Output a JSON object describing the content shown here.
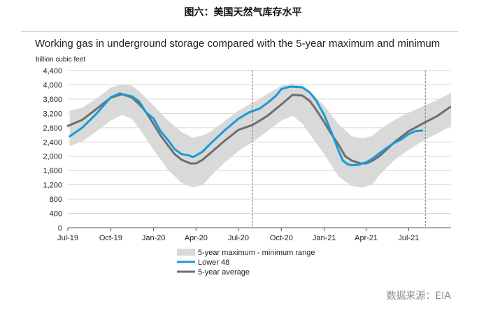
{
  "figure_title": "图六：美国天然气库存水平",
  "source_note": "数据来源：EIA",
  "chart_data": {
    "type": "line",
    "title": "Working gas in underground  storage compared with the 5-year maximum and minimum",
    "ylabel": "billion cubic feet",
    "xlabel": "",
    "ylim": [
      0,
      4400
    ],
    "y_ticks": [
      0,
      400,
      800,
      1200,
      1600,
      2000,
      2400,
      2800,
      3200,
      3600,
      4000,
      4400
    ],
    "y_tick_labels": [
      "0",
      "400",
      "800",
      "1,200",
      "1,600",
      "2,000",
      "2,400",
      "2,800",
      "3,200",
      "3,600",
      "4,000",
      "4,400"
    ],
    "x_range": [
      "2019-07-01",
      "2021-09-30"
    ],
    "x_ticks": [
      "2019-07-01",
      "2019-10-01",
      "2020-01-01",
      "2020-04-01",
      "2020-07-01",
      "2020-10-01",
      "2021-01-01",
      "2021-04-01",
      "2021-07-01"
    ],
    "x_tick_labels": [
      "Jul-19",
      "Oct-19",
      "Jan-20",
      "Apr-20",
      "Jul-20",
      "Oct-20",
      "Jan-21",
      "Apr-21",
      "Jul-21"
    ],
    "vertical_dashed_lines": [
      "2020-07-31",
      "2021-08-06"
    ],
    "legend_position": "bottom-center",
    "colors": {
      "range": "#d9d9d9",
      "lower48": "#1a9ad6",
      "average": "#6e6e6e"
    },
    "range_band": {
      "name": "5-year maximum - minimum range",
      "x": [
        "2019-07-05",
        "2019-08-01",
        "2019-09-01",
        "2019-10-01",
        "2019-10-25",
        "2019-11-15",
        "2019-12-01",
        "2020-01-01",
        "2020-02-01",
        "2020-03-01",
        "2020-03-25",
        "2020-04-15",
        "2020-05-01",
        "2020-06-01",
        "2020-07-01",
        "2020-08-01",
        "2020-09-01",
        "2020-10-01",
        "2020-10-25",
        "2020-11-15",
        "2020-12-01",
        "2021-01-01",
        "2021-02-01",
        "2021-03-01",
        "2021-03-25",
        "2021-04-15",
        "2021-05-01",
        "2021-06-01",
        "2021-07-01",
        "2021-08-01",
        "2021-09-01",
        "2021-09-30"
      ],
      "max": [
        3280,
        3360,
        3620,
        3920,
        4020,
        3980,
        3820,
        3420,
        3000,
        2680,
        2520,
        2580,
        2680,
        2980,
        3280,
        3500,
        3740,
        3980,
        4040,
        3980,
        3820,
        3420,
        2900,
        2560,
        2500,
        2580,
        2760,
        3020,
        3220,
        3400,
        3580,
        3770
      ],
      "min": [
        2280,
        2420,
        2700,
        3000,
        3160,
        3050,
        2780,
        2180,
        1620,
        1260,
        1130,
        1200,
        1420,
        1820,
        2150,
        2400,
        2700,
        3000,
        3130,
        2920,
        2620,
        2060,
        1430,
        1170,
        1120,
        1230,
        1500,
        1900,
        2180,
        2430,
        2640,
        2850
      ]
    },
    "series": [
      {
        "name": "Lower 48",
        "x": [
          "2019-07-05",
          "2019-08-01",
          "2019-09-01",
          "2019-10-01",
          "2019-10-20",
          "2019-11-01",
          "2019-11-15",
          "2019-12-01",
          "2019-12-15",
          "2020-01-01",
          "2020-01-15",
          "2020-02-01",
          "2020-02-15",
          "2020-03-01",
          "2020-03-15",
          "2020-03-25",
          "2020-04-01",
          "2020-04-15",
          "2020-05-01",
          "2020-06-01",
          "2020-07-01",
          "2020-07-24",
          "2020-08-15",
          "2020-09-01",
          "2020-09-20",
          "2020-10-01",
          "2020-10-20",
          "2020-11-01",
          "2020-11-15",
          "2020-12-01",
          "2020-12-15",
          "2021-01-01",
          "2021-01-15",
          "2021-02-01",
          "2021-02-10",
          "2021-02-20",
          "2021-03-01",
          "2021-03-15",
          "2021-04-01",
          "2021-04-15",
          "2021-05-01",
          "2021-05-20",
          "2021-06-01",
          "2021-06-15",
          "2021-07-01",
          "2021-07-15",
          "2021-07-30"
        ],
        "values": [
          2560,
          2800,
          3200,
          3650,
          3760,
          3720,
          3680,
          3540,
          3240,
          3050,
          2720,
          2450,
          2200,
          2060,
          2030,
          1980,
          2020,
          2130,
          2340,
          2720,
          3050,
          3230,
          3330,
          3490,
          3700,
          3880,
          3950,
          3940,
          3930,
          3790,
          3560,
          3150,
          2720,
          2150,
          1880,
          1780,
          1750,
          1760,
          1830,
          1940,
          2100,
          2280,
          2380,
          2470,
          2620,
          2700,
          2720
        ]
      },
      {
        "name": "5-year average",
        "x": [
          "2019-07-01",
          "2019-08-01",
          "2019-09-01",
          "2019-10-01",
          "2019-10-25",
          "2019-11-15",
          "2019-12-01",
          "2019-12-15",
          "2020-01-01",
          "2020-01-15",
          "2020-02-01",
          "2020-02-15",
          "2020-03-01",
          "2020-03-20",
          "2020-04-01",
          "2020-04-15",
          "2020-05-01",
          "2020-06-01",
          "2020-07-01",
          "2020-08-01",
          "2020-09-01",
          "2020-10-01",
          "2020-10-25",
          "2020-11-15",
          "2020-12-01",
          "2020-12-15",
          "2021-01-01",
          "2021-01-15",
          "2021-02-01",
          "2021-02-15",
          "2021-03-01",
          "2021-03-20",
          "2021-04-01",
          "2021-04-15",
          "2021-05-01",
          "2021-06-01",
          "2021-07-01",
          "2021-08-01",
          "2021-09-01",
          "2021-09-28"
        ],
        "values": [
          2850,
          3020,
          3330,
          3640,
          3740,
          3650,
          3460,
          3250,
          2900,
          2600,
          2300,
          2060,
          1900,
          1800,
          1800,
          1900,
          2080,
          2430,
          2740,
          2880,
          3130,
          3450,
          3720,
          3700,
          3550,
          3300,
          2950,
          2650,
          2320,
          2000,
          1880,
          1800,
          1800,
          1880,
          2020,
          2400,
          2700,
          2920,
          3130,
          3380
        ]
      }
    ]
  }
}
